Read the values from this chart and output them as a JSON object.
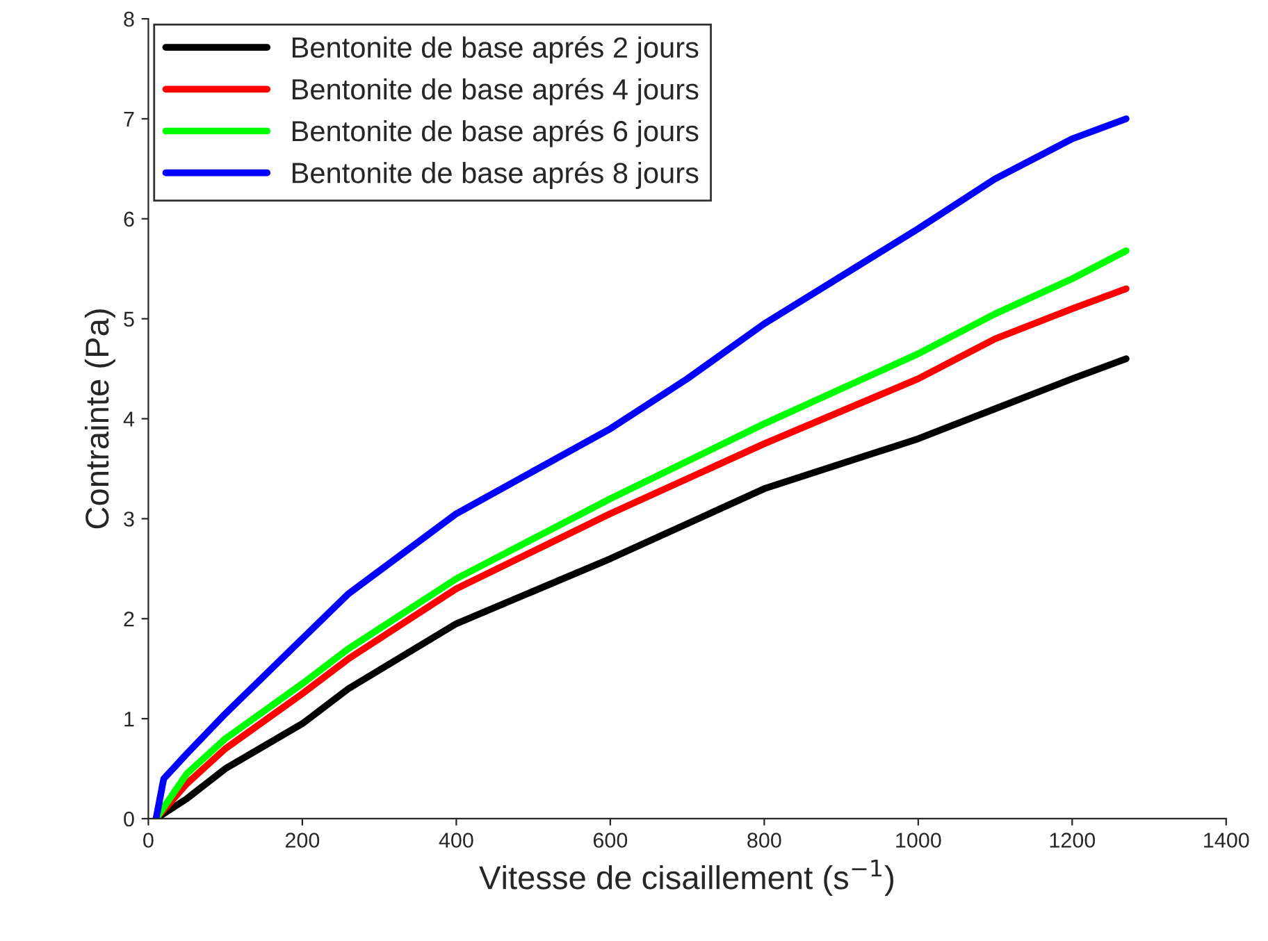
{
  "chart_data": {
    "type": "line",
    "xlabel": "Vitesse de cisaillement (s$^{−1}$)",
    "ylabel": "Contrainte (Pa)",
    "xlim": [
      0,
      1400
    ],
    "xticks": [
      0,
      200,
      400,
      600,
      800,
      1000,
      1200,
      1400
    ],
    "ylim": [
      0,
      8
    ],
    "yticks": [
      0,
      1,
      2,
      3,
      4,
      5,
      6,
      7,
      8
    ],
    "grid": false,
    "legend": "top left",
    "marker": "none",
    "line_style": "solid",
    "series": [
      {
        "name": "Bentonite de base aprés 2 jours",
        "color": "#000000",
        "x": [
          10,
          50,
          100,
          200,
          260,
          400,
          600,
          700,
          800,
          1000,
          1100,
          1200,
          1270
        ],
        "values": [
          0,
          0.2,
          0.5,
          0.95,
          1.3,
          1.95,
          2.6,
          2.95,
          3.3,
          3.8,
          4.1,
          4.4,
          4.6
        ]
      },
      {
        "name": "Bentonite de base aprés 4 jours",
        "color": "#ff0000",
        "x": [
          10,
          50,
          100,
          200,
          260,
          400,
          600,
          800,
          1000,
          1100,
          1200,
          1270
        ],
        "values": [
          0,
          0.35,
          0.7,
          1.25,
          1.6,
          2.3,
          3.05,
          3.75,
          4.4,
          4.8,
          5.1,
          5.3
        ]
      },
      {
        "name": "Bentonite de base aprés 6 jours",
        "color": "#00ff00",
        "x": [
          10,
          50,
          100,
          200,
          260,
          400,
          600,
          800,
          1000,
          1100,
          1200,
          1270
        ],
        "values": [
          0,
          0.45,
          0.8,
          1.35,
          1.7,
          2.4,
          3.2,
          3.95,
          4.65,
          5.05,
          5.4,
          5.68
        ]
      },
      {
        "name": "Bentonite de base aprés 8 jours",
        "color": "#0000ff",
        "x": [
          10,
          20,
          50,
          100,
          200,
          260,
          400,
          600,
          700,
          800,
          1000,
          1100,
          1200,
          1270
        ],
        "values": [
          0,
          0.4,
          0.65,
          1.05,
          1.8,
          2.25,
          3.05,
          3.9,
          4.4,
          4.95,
          5.9,
          6.4,
          6.8,
          7.0
        ]
      }
    ]
  }
}
